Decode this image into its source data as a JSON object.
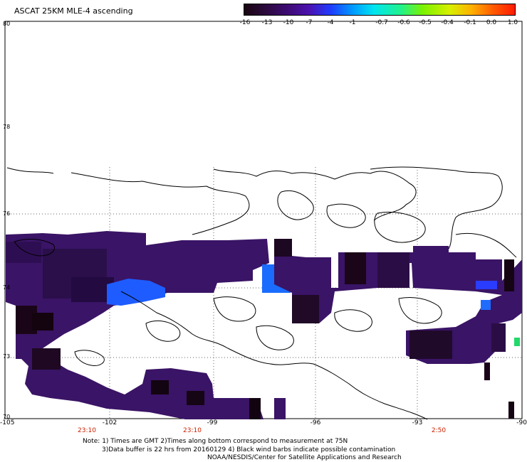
{
  "title": "ASCAT 25KM MLE-4 ascending",
  "scale": {
    "labels": [
      "-16",
      "-13",
      "-10",
      "-7",
      "-4",
      "-1",
      "-0.7",
      "-0.6",
      "-0.5",
      "-0.4",
      "-0.1",
      "0.0",
      "1.0"
    ],
    "colors": [
      "#1a0510",
      "#2b0a3d",
      "#3d0a73",
      "#4b12b0",
      "#1f3cff",
      "#0099ff",
      "#00e5f0",
      "#22f28a",
      "#7cf200",
      "#d8f000",
      "#ffb000",
      "#ff5a00",
      "#ff1a00"
    ]
  },
  "latitudes": [
    "80",
    "78",
    "76",
    "74",
    "73",
    "70"
  ],
  "longitudes": [
    "-105",
    "-102",
    "-99",
    "-96",
    "-93",
    "-90"
  ],
  "times": [
    "23:10",
    "23:10",
    "2:50"
  ],
  "notes": [
    "Note: 1) Times are GMT 2)Times along bottom correspond to measurement at 75N",
    "3)Data buffer is 22 hrs from 20160129 4) Black wind barbs indicate possible contamination",
    "NOAA/NESDIS/Center for Satellite Applications and Research"
  ]
}
